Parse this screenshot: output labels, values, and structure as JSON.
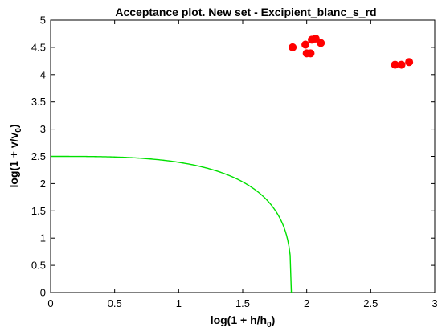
{
  "chart_data": {
    "type": "scatter",
    "title": "Acceptance plot. New set - Excipient_blanc_s_rd",
    "xlabel": {
      "main": "log(1 + h/h",
      "sub": "0",
      "end": ")"
    },
    "ylabel": {
      "main": "log(1 + v/v",
      "sub": "0",
      "end": ")"
    },
    "xlim": [
      0,
      3
    ],
    "ylim": [
      0,
      5
    ],
    "xticks": [
      0,
      0.5,
      1,
      1.5,
      2,
      2.5,
      3
    ],
    "xtick_labels": [
      "0",
      "0.5",
      "1",
      "1.5",
      "2",
      "2.5",
      "3"
    ],
    "yticks": [
      0,
      0.5,
      1,
      1.5,
      2,
      2.5,
      3,
      3.5,
      4,
      4.5,
      5
    ],
    "ytick_labels": [
      "0",
      "0.5",
      "1",
      "1.5",
      "2",
      "2.5",
      "3",
      "3.5",
      "4",
      "4.5",
      "5"
    ],
    "grid": false,
    "points": [
      {
        "x": 1.89,
        "y": 4.5
      },
      {
        "x": 1.99,
        "y": 4.55
      },
      {
        "x": 2.0,
        "y": 4.39
      },
      {
        "x": 2.03,
        "y": 4.39
      },
      {
        "x": 2.04,
        "y": 4.64
      },
      {
        "x": 2.07,
        "y": 4.66
      },
      {
        "x": 2.11,
        "y": 4.58
      },
      {
        "x": 2.69,
        "y": 4.18
      },
      {
        "x": 2.74,
        "y": 4.18
      },
      {
        "x": 2.8,
        "y": 4.23
      }
    ],
    "curve": {
      "x0": 1.88,
      "y0": 2.5,
      "exponent": 3.2
    },
    "colors": {
      "points": "#ff0000",
      "curve": "#00e000",
      "axes": "#000000"
    }
  }
}
